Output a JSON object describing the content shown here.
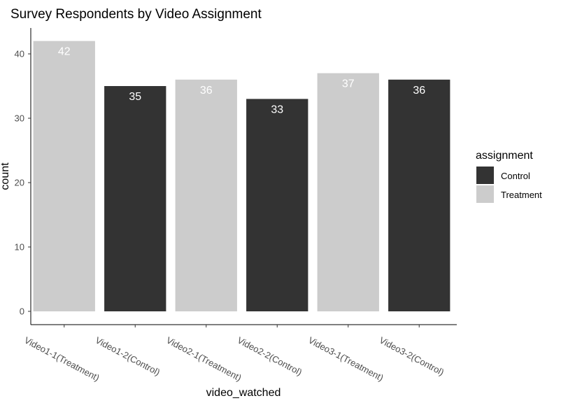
{
  "chart_data": {
    "type": "bar",
    "title": "Survey Respondents by Video Assignment",
    "xlabel": "video_watched",
    "ylabel": "count",
    "ylim": [
      0,
      45
    ],
    "yticks": [
      0,
      10,
      20,
      30,
      40
    ],
    "grid": false,
    "categories": [
      "Video1-1(Treatment)",
      "Video1-2(Control)",
      "Video2-1(Treatment)",
      "Video2-2(Control)",
      "Video3-1(Treatment)",
      "Video3-2(Control)"
    ],
    "values": [
      42,
      35,
      36,
      33,
      37,
      36
    ],
    "groups": [
      "Treatment",
      "Control",
      "Treatment",
      "Control",
      "Treatment",
      "Control"
    ],
    "data_labels": [
      "42",
      "35",
      "36",
      "33",
      "37",
      "36"
    ],
    "legend": {
      "title": "assignment",
      "placement": "right",
      "entries": [
        {
          "name": "Control",
          "color": "#333333"
        },
        {
          "name": "Treatment",
          "color": "#cccccc"
        }
      ]
    }
  }
}
